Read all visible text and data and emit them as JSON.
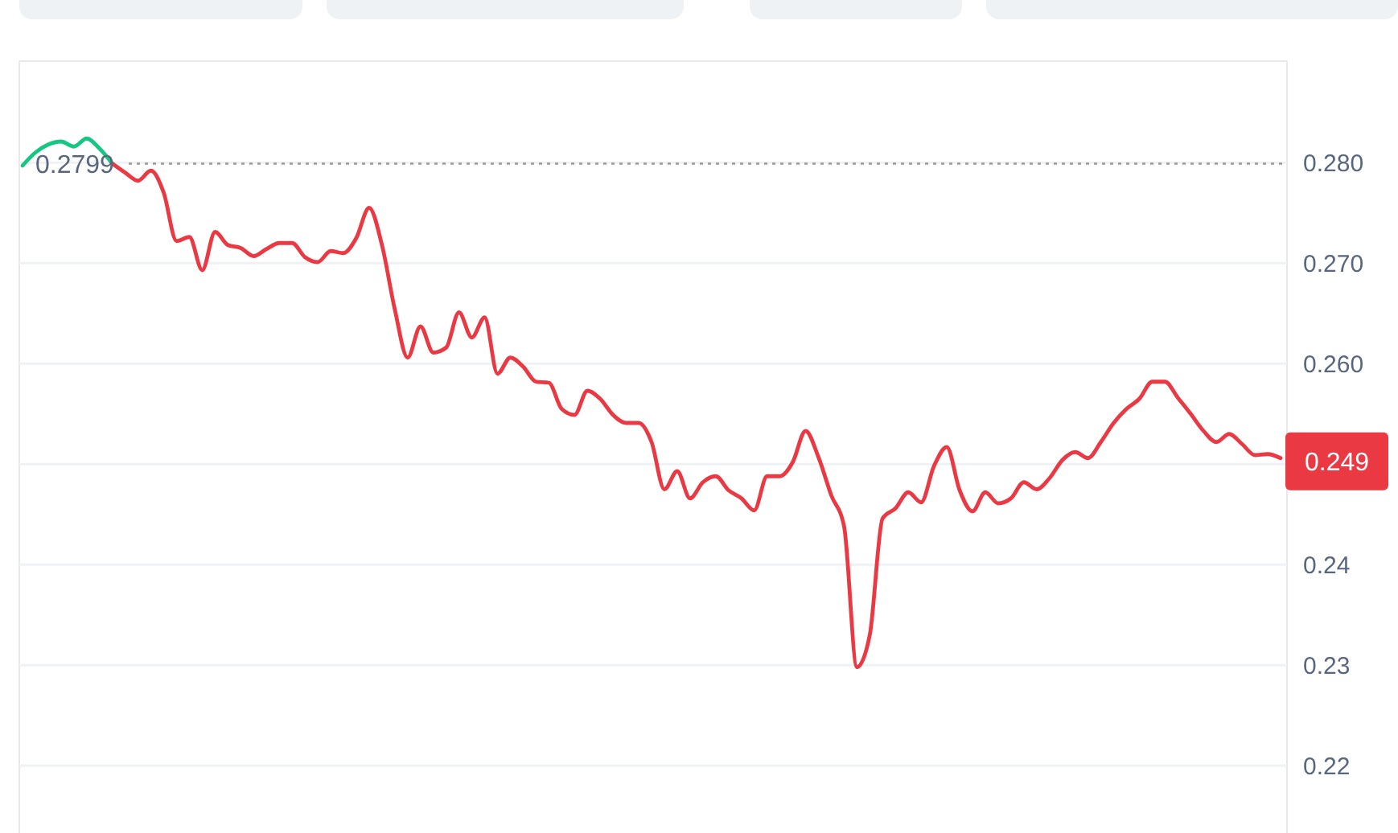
{
  "chart_data": {
    "type": "line",
    "categories": [
      null,
      null,
      null,
      null,
      null,
      null,
      null,
      null,
      null,
      null,
      null,
      null,
      null,
      null,
      null,
      null,
      null,
      null,
      null,
      null,
      null,
      null,
      null,
      null,
      null,
      null,
      null,
      null,
      null,
      null,
      null,
      null,
      null,
      null,
      null,
      null,
      null,
      null,
      null,
      null,
      null,
      null,
      null,
      null,
      null,
      null,
      null,
      null,
      null,
      null,
      null,
      null,
      null,
      null,
      null,
      null,
      null,
      null,
      null,
      null,
      null,
      null,
      null,
      null,
      null,
      null,
      null,
      null,
      null,
      null,
      null,
      null,
      null,
      null,
      null,
      null,
      null,
      null,
      null,
      null,
      null,
      null,
      null,
      null,
      null,
      null,
      null,
      null,
      null,
      null,
      null,
      null,
      null,
      null,
      null,
      null,
      null,
      null,
      null
    ],
    "series": [
      {
        "type": "line",
        "color": "#16c784",
        "values": [
          0.2797,
          0.281,
          0.2818,
          0.2821,
          0.2816,
          0.2824,
          0.2814,
          0.2799,
          null,
          null,
          null,
          null,
          null,
          null,
          null,
          null,
          null,
          null,
          null,
          null,
          null,
          null,
          null,
          null,
          null,
          null,
          null,
          null,
          null,
          null,
          null,
          null,
          null,
          null,
          null,
          null,
          null,
          null,
          null,
          null,
          null,
          null,
          null,
          null,
          null,
          null,
          null,
          null,
          null,
          null,
          null,
          null,
          null,
          null,
          null,
          null,
          null,
          null,
          null,
          null,
          null,
          null,
          null,
          null,
          null,
          null,
          null,
          null,
          null,
          null,
          null,
          null,
          null,
          null,
          null,
          null,
          null,
          null,
          null,
          null,
          null,
          null,
          null,
          null,
          null,
          null,
          null,
          null,
          null,
          null,
          null,
          null,
          null,
          null,
          null,
          null,
          null,
          null,
          null
        ]
      },
      {
        "type": "line",
        "color": "#ea3943",
        "values": [
          null,
          null,
          null,
          null,
          null,
          null,
          null,
          0.2799,
          0.279,
          0.2782,
          0.2792,
          0.277,
          0.2722,
          0.2726,
          0.2693,
          0.2731,
          0.2718,
          0.2715,
          0.2707,
          0.2714,
          0.272,
          0.272,
          0.2706,
          0.2701,
          0.2712,
          0.271,
          0.2725,
          0.2755,
          0.2718,
          0.2654,
          0.2606,
          0.2637,
          0.2611,
          0.2616,
          0.2651,
          0.2626,
          0.2646,
          0.259,
          0.2606,
          0.2597,
          0.2582,
          0.2581,
          0.2555,
          0.2549,
          0.2573,
          0.2565,
          0.2549,
          0.2541,
          0.2541,
          0.2522,
          0.2475,
          0.2493,
          0.2466,
          0.2482,
          0.2488,
          0.2474,
          0.2466,
          0.2454,
          0.2488,
          0.2488,
          0.2502,
          0.2533,
          0.2507,
          0.2469,
          0.2438,
          0.2298,
          0.233,
          0.2446,
          0.2456,
          0.2472,
          0.2462,
          0.2498,
          0.2517,
          0.2474,
          0.2453,
          0.2472,
          0.2461,
          0.2466,
          0.2482,
          0.2475,
          0.2486,
          0.2504,
          0.2512,
          0.2506,
          0.2522,
          0.2541,
          0.2555,
          0.2565,
          0.2582,
          0.2582,
          0.2566,
          0.255,
          0.2533,
          0.2522,
          0.253,
          0.252,
          0.2509,
          0.251,
          0.2506
        ]
      }
    ],
    "ylim": [
      0.2133,
      0.2901
    ],
    "yticks": [
      {
        "value": 0.28,
        "label": "0.280"
      },
      {
        "value": 0.27,
        "label": "0.270"
      },
      {
        "value": 0.26,
        "label": "0.260"
      },
      {
        "value": 0.25,
        "label": null
      },
      {
        "value": 0.24,
        "label": "0.24"
      },
      {
        "value": 0.23,
        "label": "0.23"
      },
      {
        "value": 0.22,
        "label": "0.22"
      }
    ],
    "grid": "y",
    "tick_labels": "y",
    "ref_lines": [
      {
        "axis": "y",
        "value": 0.2799,
        "label": "0.2799",
        "line_style": "dotted",
        "color": "#999999"
      }
    ],
    "annotations": [
      "0.249"
    ]
  }
}
